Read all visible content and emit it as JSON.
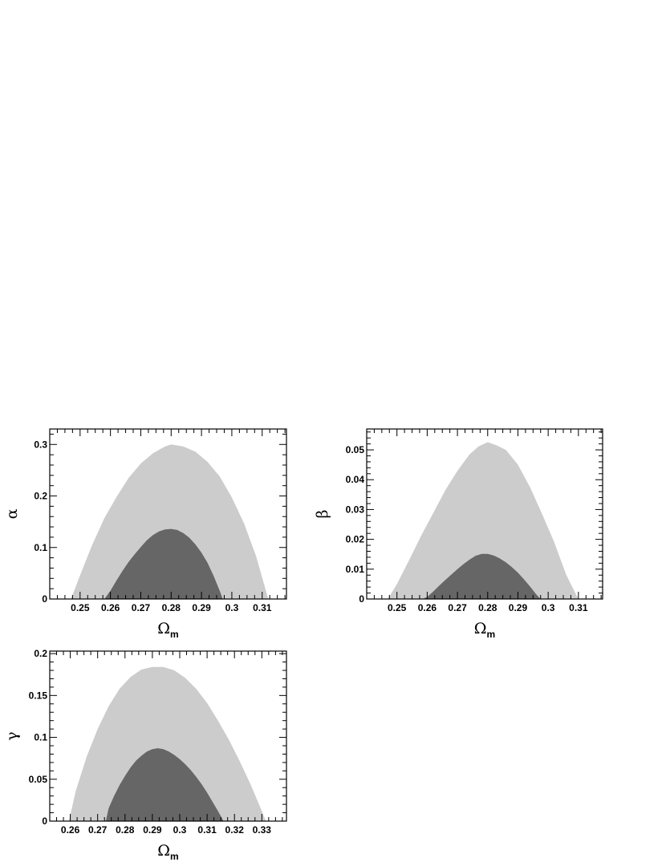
{
  "chart_data": [
    {
      "type": "area",
      "panel": "alpha",
      "xlabel": "Ω",
      "xlabel_sub": "m",
      "ylabel": "α",
      "xlim": [
        0.24,
        0.318
      ],
      "ylim": [
        0,
        0.33
      ],
      "xticks": [
        0.25,
        0.26,
        0.27,
        0.28,
        0.29,
        0.3,
        0.31
      ],
      "xtick_labels": [
        "0.25",
        "0.26",
        "0.27",
        "0.28",
        "0.29",
        "0.3",
        "0.31"
      ],
      "yticks": [
        0,
        0.1,
        0.2,
        0.3
      ],
      "ytick_labels": [
        "0",
        "0.1",
        "0.2",
        "0.3"
      ],
      "grid": false,
      "colors": {
        "outer": "#cccccc",
        "inner": "#666666"
      },
      "series": [
        {
          "level": "outer",
          "x": [
            0.247,
            0.25,
            0.254,
            0.258,
            0.262,
            0.266,
            0.27,
            0.274,
            0.278,
            0.28,
            0.284,
            0.288,
            0.292,
            0.296,
            0.3,
            0.304,
            0.308,
            0.312
          ],
          "y": [
            0,
            0.046,
            0.105,
            0.157,
            0.198,
            0.235,
            0.263,
            0.283,
            0.296,
            0.3,
            0.296,
            0.286,
            0.266,
            0.238,
            0.197,
            0.147,
            0.083,
            0
          ]
        },
        {
          "level": "inner",
          "x": [
            0.258,
            0.26,
            0.262,
            0.264,
            0.266,
            0.268,
            0.27,
            0.272,
            0.274,
            0.276,
            0.278,
            0.28,
            0.282,
            0.284,
            0.286,
            0.288,
            0.29,
            0.292,
            0.294,
            0.296,
            0.297
          ],
          "y": [
            0,
            0.016,
            0.036,
            0.055,
            0.072,
            0.087,
            0.101,
            0.114,
            0.124,
            0.131,
            0.135,
            0.136,
            0.134,
            0.128,
            0.119,
            0.106,
            0.09,
            0.07,
            0.045,
            0.016,
            0
          ]
        }
      ]
    },
    {
      "type": "area",
      "panel": "beta",
      "xlabel": "Ω",
      "xlabel_sub": "m",
      "ylabel": "β",
      "xlim": [
        0.24,
        0.318
      ],
      "ylim": [
        0,
        0.057
      ],
      "xticks": [
        0.25,
        0.26,
        0.27,
        0.28,
        0.29,
        0.3,
        0.31
      ],
      "xtick_labels": [
        "0.25",
        "0.26",
        "0.27",
        "0.28",
        "0.29",
        "0.3",
        "0.31"
      ],
      "yticks": [
        0,
        0.01,
        0.02,
        0.03,
        0.04,
        0.05
      ],
      "ytick_labels": [
        "0",
        "0.01",
        "0.02",
        "0.03",
        "0.04",
        "0.05"
      ],
      "grid": false,
      "colors": {
        "outer": "#cccccc",
        "inner": "#666666"
      },
      "series": [
        {
          "level": "outer",
          "x": [
            0.247,
            0.25,
            0.254,
            0.258,
            0.262,
            0.266,
            0.27,
            0.274,
            0.277,
            0.28,
            0.283,
            0.286,
            0.29,
            0.294,
            0.298,
            0.302,
            0.306,
            0.31
          ],
          "y": [
            0,
            0.005,
            0.013,
            0.0212,
            0.0288,
            0.0365,
            0.043,
            0.0485,
            0.0512,
            0.0526,
            0.0515,
            0.05,
            0.045,
            0.0375,
            0.0285,
            0.019,
            0.008,
            0
          ]
        },
        {
          "level": "inner",
          "x": [
            0.2585,
            0.26,
            0.262,
            0.264,
            0.266,
            0.268,
            0.27,
            0.272,
            0.274,
            0.276,
            0.278,
            0.28,
            0.282,
            0.284,
            0.286,
            0.288,
            0.29,
            0.292,
            0.294,
            0.296,
            0.2975
          ],
          "y": [
            0,
            0.0007,
            0.0025,
            0.0045,
            0.0064,
            0.0082,
            0.01,
            0.0117,
            0.0132,
            0.0145,
            0.0151,
            0.0151,
            0.0146,
            0.0136,
            0.0123,
            0.0107,
            0.0088,
            0.0066,
            0.0042,
            0.0016,
            0
          ]
        }
      ]
    },
    {
      "type": "area",
      "panel": "gamma",
      "xlabel": "Ω",
      "xlabel_sub": "m",
      "ylabel": "γ",
      "xlim": [
        0.2525,
        0.339
      ],
      "ylim": [
        0,
        0.203
      ],
      "xticks": [
        0.26,
        0.27,
        0.28,
        0.29,
        0.3,
        0.31,
        0.32,
        0.33
      ],
      "xtick_labels": [
        "0.26",
        "0.27",
        "0.28",
        "0.29",
        "0.3",
        "0.31",
        "0.32",
        "0.33"
      ],
      "yticks": [
        0,
        0.05,
        0.1,
        0.15,
        0.2
      ],
      "ytick_labels": [
        "0",
        "0.05",
        "0.1",
        "0.15",
        "0.2"
      ],
      "grid": false,
      "colors": {
        "outer": "#cccccc",
        "inner": "#666666"
      },
      "series": [
        {
          "level": "outer",
          "x": [
            0.2595,
            0.262,
            0.266,
            0.27,
            0.274,
            0.278,
            0.282,
            0.286,
            0.29,
            0.294,
            0.298,
            0.302,
            0.306,
            0.31,
            0.314,
            0.318,
            0.322,
            0.326,
            0.33,
            0.3315
          ],
          "y": [
            0,
            0.036,
            0.077,
            0.11,
            0.137,
            0.158,
            0.172,
            0.181,
            0.184,
            0.184,
            0.18,
            0.171,
            0.158,
            0.141,
            0.12,
            0.097,
            0.071,
            0.043,
            0.012,
            0
          ]
        },
        {
          "level": "inner",
          "x": [
            0.273,
            0.274,
            0.276,
            0.278,
            0.28,
            0.282,
            0.284,
            0.286,
            0.288,
            0.29,
            0.292,
            0.294,
            0.296,
            0.298,
            0.3,
            0.302,
            0.304,
            0.306,
            0.308,
            0.31,
            0.312,
            0.314,
            0.316
          ],
          "y": [
            0,
            0.015,
            0.03,
            0.043,
            0.054,
            0.064,
            0.072,
            0.078,
            0.083,
            0.086,
            0.087,
            0.086,
            0.083,
            0.079,
            0.074,
            0.068,
            0.061,
            0.053,
            0.044,
            0.034,
            0.023,
            0.012,
            0
          ]
        }
      ]
    }
  ]
}
